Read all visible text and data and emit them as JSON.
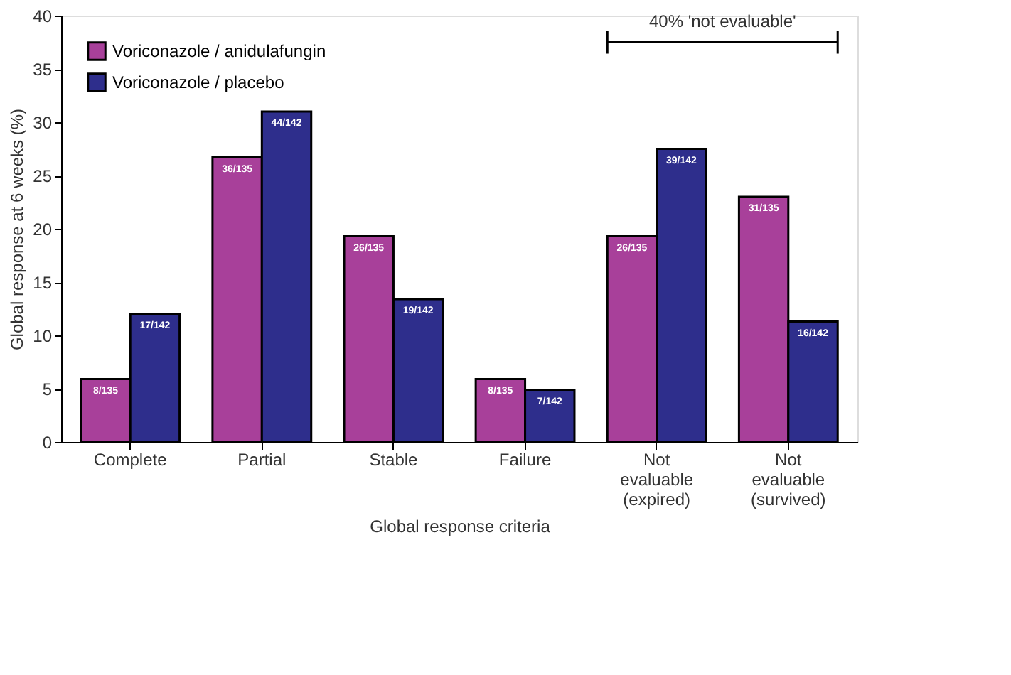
{
  "chart_data": {
    "type": "bar",
    "categories": [
      "Complete",
      "Partial",
      "Stable",
      "Failure",
      "Not evaluable (expired)",
      "Not evaluable (survived)"
    ],
    "xlabel": "Global response criteria",
    "ylabel": "Global response at 6 weeks (%)",
    "series": [
      {
        "name": "Voriconazole / anidulafungin",
        "color": "#a8409a",
        "values": [
          5.9,
          26.7,
          19.3,
          5.9,
          19.3,
          23.0
        ],
        "value_labels": [
          "8/135",
          "36/135",
          "26/135",
          "8/135",
          "26/135",
          "31/135"
        ]
      },
      {
        "name": "Voriconazole / placebo",
        "color": "#2e2e8c",
        "values": [
          12.0,
          31.0,
          13.4,
          4.9,
          27.5,
          11.3
        ],
        "value_labels": [
          "17/142",
          "44/142",
          "19/142",
          "7/142",
          "39/142",
          "16/142"
        ]
      }
    ],
    "ylim": [
      0,
      40
    ],
    "yticks": [
      0,
      5,
      10,
      15,
      20,
      25,
      30,
      35,
      40
    ],
    "annotations": [
      "40% 'not evaluable'"
    ],
    "grid": false,
    "legend": "top left"
  }
}
